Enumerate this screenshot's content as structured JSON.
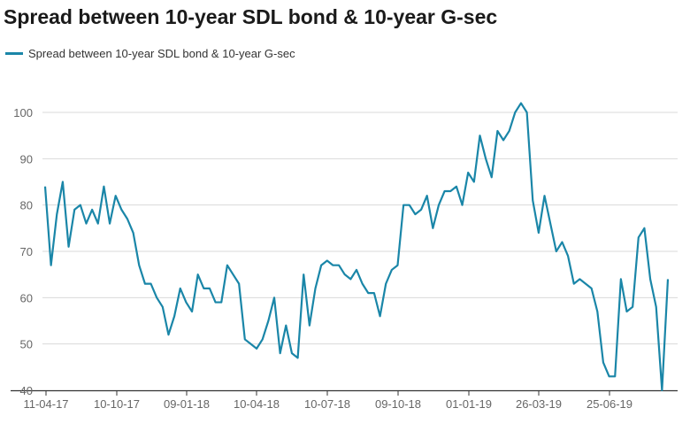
{
  "title": "Spread between 10-year SDL bond & 10-year G-sec",
  "colors": {
    "series": "#1a86a8",
    "grid": "#d9d9d9",
    "axis": "#333333",
    "text": "#666666"
  },
  "chart_data": {
    "type": "line",
    "title": "Spread between 10-year SDL bond & 10-year G-sec",
    "xlabel": "",
    "ylabel": "",
    "ylim": [
      40,
      100
    ],
    "yticks": [
      40,
      50,
      60,
      70,
      80,
      90,
      100
    ],
    "xticks": [
      "11-04-17",
      "10-10-17",
      "09-01-18",
      "10-04-18",
      "10-07-18",
      "09-10-18",
      "01-01-19",
      "26-03-19",
      "25-06-19"
    ],
    "grid": true,
    "legend": "top-left",
    "series": [
      {
        "name": "Spread between 10-year SDL bond & 10-year G-sec",
        "values": [
          84,
          67,
          78,
          85,
          71,
          79,
          80,
          76,
          79,
          76,
          84,
          76,
          82,
          79,
          77,
          74,
          67,
          63,
          63,
          60,
          58,
          52,
          56,
          62,
          59,
          57,
          65,
          62,
          62,
          59,
          59,
          67,
          65,
          63,
          51,
          50,
          49,
          51,
          55,
          60,
          48,
          54,
          48,
          47,
          65,
          54,
          62,
          67,
          68,
          67,
          67,
          65,
          64,
          66,
          63,
          61,
          61,
          56,
          63,
          66,
          67,
          80,
          80,
          78,
          79,
          82,
          75,
          80,
          83,
          83,
          84,
          80,
          87,
          85,
          95,
          90,
          86,
          96,
          94,
          96,
          100,
          102,
          100,
          81,
          74,
          82,
          76,
          70,
          72,
          69,
          63,
          64,
          63,
          62,
          57,
          46,
          43,
          43,
          64,
          57,
          58,
          73,
          75,
          64,
          58,
          40,
          64
        ]
      }
    ]
  }
}
